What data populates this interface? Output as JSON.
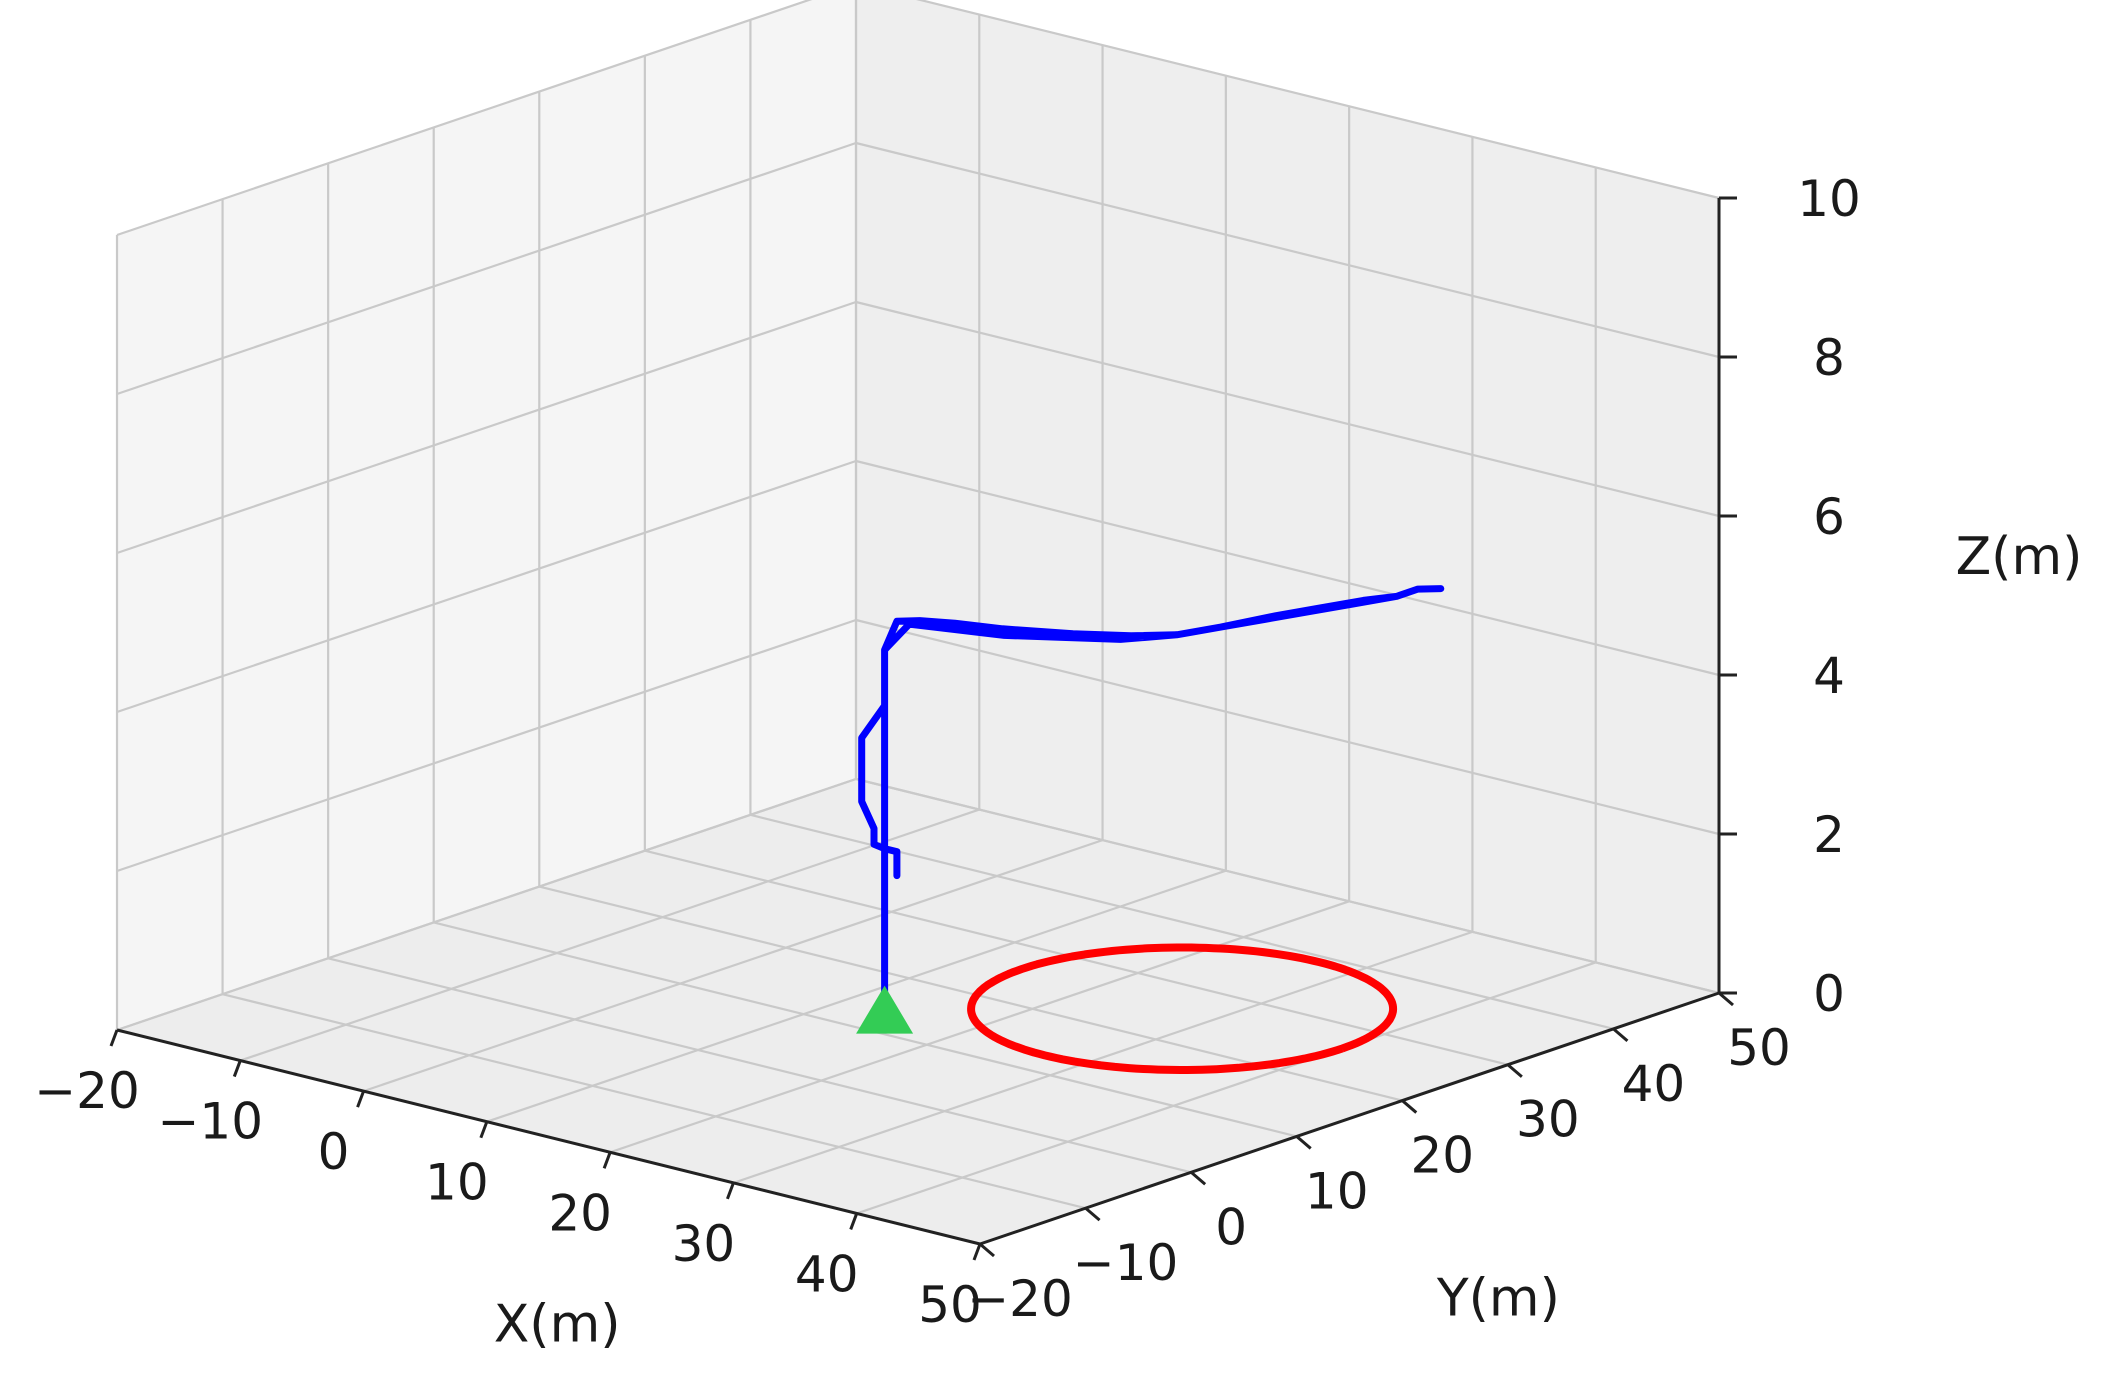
{
  "chart_data": {
    "type": "line",
    "projection": "3d",
    "title": "",
    "xlabel": "X(m)",
    "ylabel": "Y(m)",
    "zlabel": "Z(m)",
    "xlim": [
      -20,
      50
    ],
    "ylim": [
      -20,
      50
    ],
    "zlim": [
      0,
      10
    ],
    "x_ticks": [
      "−20",
      "−10",
      "0",
      "10",
      "20",
      "30",
      "40",
      "50"
    ],
    "y_ticks": [
      "−20",
      "−10",
      "0",
      "10",
      "20",
      "30",
      "40",
      "50"
    ],
    "z_ticks": [
      "0",
      "2",
      "4",
      "6",
      "8",
      "10"
    ],
    "grid": true,
    "colors": {
      "circle": "#ff0000",
      "trajectory": "#0000ff",
      "start_marker": "#33cc55",
      "pane": "#f2f2f2",
      "grid": "#c9c9c9"
    },
    "series": [
      {
        "role": "reference-circle",
        "color": "#ff0000",
        "center_x": 27,
        "center_y": 26,
        "radius": 13,
        "z": 0
      },
      {
        "role": "flown-trajectory",
        "color": "#0000ff",
        "x": [
          14,
          14,
          14,
          14,
          14,
          14,
          15,
          16,
          18,
          21,
          25,
          28,
          30,
          31,
          32,
          33,
          34,
          35,
          35,
          36,
          35,
          35,
          34,
          33,
          32,
          31,
          30,
          28,
          25,
          22,
          19,
          16,
          14,
          14,
          14,
          13,
          13,
          13,
          14,
          14,
          14,
          15,
          15,
          15
        ],
        "y": [
          13,
          13,
          13,
          13,
          13,
          13,
          13,
          14,
          15,
          16,
          18,
          20,
          22,
          25,
          28,
          31,
          34,
          37,
          39,
          40,
          39,
          37,
          35,
          32,
          29,
          25,
          22,
          19,
          17,
          15,
          14,
          13,
          13,
          13,
          13,
          12,
          12,
          12,
          12,
          12,
          13,
          13,
          13,
          13
        ],
        "z": [
          0,
          1,
          2,
          3,
          4,
          4.6,
          5,
          5,
          5,
          5,
          5,
          5,
          5,
          5,
          5,
          5,
          5,
          5,
          5,
          5,
          5,
          5,
          5,
          5,
          5,
          5,
          5,
          5,
          5,
          5,
          5,
          5,
          4.6,
          4.2,
          3.9,
          3.5,
          3.1,
          2.7,
          2.4,
          2.2,
          2.1,
          2.1,
          2.0,
          1.8
        ]
      },
      {
        "role": "start-marker",
        "marker": "triangle",
        "color": "#33cc55",
        "x": [
          14
        ],
        "y": [
          13
        ],
        "z": [
          0
        ]
      }
    ]
  }
}
